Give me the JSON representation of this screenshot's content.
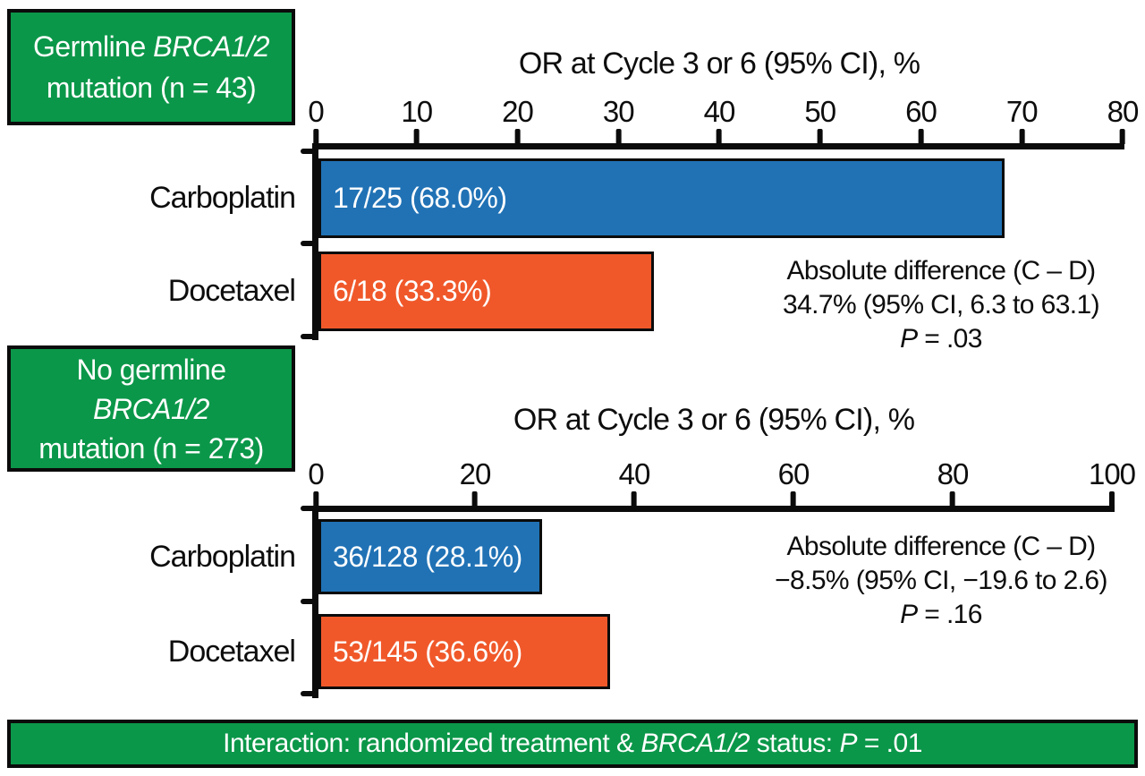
{
  "colors": {
    "green": "#0B9749",
    "blue": "#2072B5",
    "orange": "#F0582A",
    "axis_black": "#0B0B0B"
  },
  "group_boxes": [
    {
      "line1_prefix": "Germline ",
      "line1_gene": "BRCA1/2",
      "line2": "mutation (n = 43)"
    },
    {
      "line1": "No germline",
      "line2_gene": "BRCA1/2",
      "line3": "mutation (n = 273)"
    }
  ],
  "banner": {
    "prefix": "Interaction: randomized treatment & ",
    "gene": "BRCA1/2",
    "mid": " status: ",
    "p_label": "P",
    "p_value": " = .01"
  },
  "chart_data": [
    {
      "type": "bar",
      "orientation": "horizontal",
      "group": "Germline BRCA1/2 mutation (n = 43)",
      "title": "OR at Cycle 3 or 6 (95% CI), %",
      "xlim": [
        0,
        80
      ],
      "xticks": [
        0,
        10,
        20,
        30,
        40,
        50,
        60,
        70,
        80
      ],
      "grid": false,
      "legend": false,
      "categories": [
        "Carboplatin",
        "Docetaxel"
      ],
      "bars": [
        {
          "category": "Carboplatin",
          "value": 68.0,
          "label": "17/25 (68.0%)",
          "responders": 17,
          "total": 25,
          "percent": 68.0,
          "color": "#2072B5"
        },
        {
          "category": "Docetaxel",
          "value": 33.3,
          "label": "6/18 (33.3%)",
          "responders": 6,
          "total": 18,
          "percent": 33.3,
          "color": "#F0582A"
        }
      ],
      "annotation": {
        "line1": "Absolute difference (C – D)",
        "line2": "34.7% (95% CI, 6.3 to 63.1)",
        "p_label": "P",
        "p_value": " = .03"
      }
    },
    {
      "type": "bar",
      "orientation": "horizontal",
      "group": "No germline BRCA1/2 mutation (n = 273)",
      "title": "OR at Cycle 3 or 6 (95% CI), %",
      "xlim": [
        0,
        100
      ],
      "xticks": [
        0,
        20,
        40,
        60,
        80,
        100
      ],
      "grid": false,
      "legend": false,
      "categories": [
        "Carboplatin",
        "Docetaxel"
      ],
      "bars": [
        {
          "category": "Carboplatin",
          "value": 28.1,
          "label": "36/128 (28.1%)",
          "responders": 36,
          "total": 128,
          "percent": 28.1,
          "color": "#2072B5"
        },
        {
          "category": "Docetaxel",
          "value": 36.6,
          "label": "53/145 (36.6%)",
          "responders": 53,
          "total": 145,
          "percent": 36.6,
          "color": "#F0582A"
        }
      ],
      "annotation": {
        "line1": "Absolute difference (C – D)",
        "line2": "−8.5% (95% CI, −19.6 to 2.6)",
        "p_label": "P",
        "p_value": " = .16"
      }
    }
  ]
}
